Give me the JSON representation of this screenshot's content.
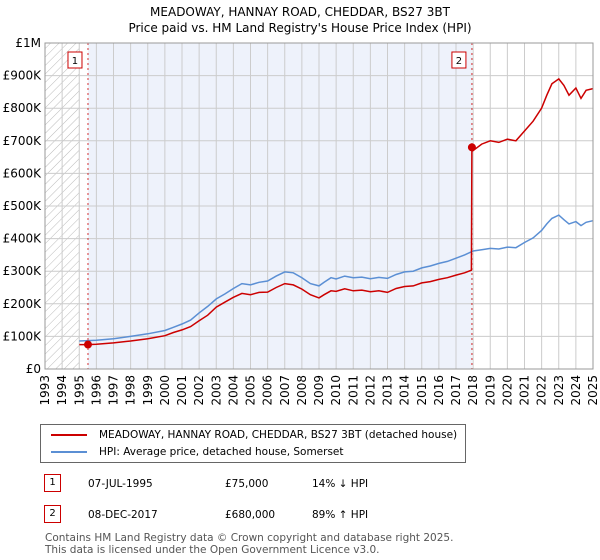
{
  "title": "MEADOWAY, HANNAY ROAD, CHEDDAR, BS27 3BT",
  "subtitle": "Price paid vs. HM Land Registry's House Price Index (HPI)",
  "legend": {
    "property_label": "MEADOWAY, HANNAY ROAD, CHEDDAR, BS27 3BT (detached house)",
    "hpi_label": "HPI: Average price, detached house, Somerset"
  },
  "transactions": [
    {
      "num": "1",
      "date": "07-JUL-1995",
      "price": "£75,000",
      "hpi": "14% ↓ HPI"
    },
    {
      "num": "2",
      "date": "08-DEC-2017",
      "price": "£680,000",
      "hpi": "89% ↑ HPI"
    }
  ],
  "footer": {
    "line1": "Contains HM Land Registry data © Crown copyright and database right 2025.",
    "line2": "This data is licensed under the Open Government Licence v3.0."
  },
  "colors": {
    "property": "#cc0000",
    "hpi": "#5b8fd4",
    "band": "#eef2fb",
    "grid": "#cccccc"
  },
  "chart_data": {
    "type": "line",
    "xlim": [
      1993,
      2025
    ],
    "ylim": [
      0,
      1000000
    ],
    "y_ticks": [
      {
        "value": 0,
        "label": "£0"
      },
      {
        "value": 100000,
        "label": "£100K"
      },
      {
        "value": 200000,
        "label": "£200K"
      },
      {
        "value": 300000,
        "label": "£300K"
      },
      {
        "value": 400000,
        "label": "£400K"
      },
      {
        "value": 500000,
        "label": "£500K"
      },
      {
        "value": 600000,
        "label": "£600K"
      },
      {
        "value": 700000,
        "label": "£700K"
      },
      {
        "value": 800000,
        "label": "£800K"
      },
      {
        "value": 900000,
        "label": "£900K"
      },
      {
        "value": 1000000,
        "label": "£1M"
      }
    ],
    "x_ticks": [
      "1993",
      "1994",
      "1995",
      "1996",
      "1997",
      "1998",
      "1999",
      "2000",
      "2001",
      "2002",
      "2003",
      "2004",
      "2005",
      "2006",
      "2007",
      "2008",
      "2009",
      "2010",
      "2011",
      "2012",
      "2013",
      "2014",
      "2015",
      "2016",
      "2017",
      "2018",
      "2019",
      "2020",
      "2021",
      "2022",
      "2023",
      "2024",
      "2025"
    ],
    "hatch_until": 1995.0,
    "shade_from": 1995.51,
    "shade_to": 2017.93,
    "markers": [
      {
        "label": "1",
        "x": 1995.51,
        "y": 75000
      },
      {
        "label": "2",
        "x": 2017.93,
        "y": 680000
      }
    ],
    "series": [
      {
        "name": "MEADOWAY, HANNAY ROAD, CHEDDAR, BS27 3BT (detached house)",
        "x": [
          1995.0,
          1995.51,
          1996.0,
          1997.0,
          1998.0,
          1999.0,
          2000.0,
          2000.5,
          2001.0,
          2001.5,
          2002.0,
          2002.5,
          2003.0,
          2003.5,
          2004.0,
          2004.5,
          2005.0,
          2005.5,
          2006.0,
          2006.5,
          2007.0,
          2007.5,
          2008.0,
          2008.5,
          2009.0,
          2009.3,
          2009.7,
          2010.0,
          2010.5,
          2011.0,
          2011.5,
          2012.0,
          2012.5,
          2013.0,
          2013.5,
          2014.0,
          2014.5,
          2015.0,
          2015.5,
          2016.0,
          2016.5,
          2017.0,
          2017.5,
          2017.9,
          2017.93,
          2018.0,
          2018.5,
          2019.0,
          2019.5,
          2020.0,
          2020.5,
          2021.0,
          2021.5,
          2022.0,
          2022.3,
          2022.6,
          2023.0,
          2023.3,
          2023.6,
          2024.0,
          2024.3,
          2024.6,
          2025.0
        ],
        "values": [
          75000,
          75000,
          76000,
          80000,
          86000,
          93000,
          102000,
          112000,
          120000,
          130000,
          148000,
          165000,
          190000,
          205000,
          220000,
          232000,
          228000,
          235000,
          236000,
          250000,
          262000,
          258000,
          245000,
          228000,
          218000,
          228000,
          240000,
          238000,
          246000,
          240000,
          242000,
          237000,
          240000,
          235000,
          247000,
          253000,
          255000,
          264000,
          268000,
          275000,
          280000,
          288000,
          295000,
          303000,
          680000,
          670000,
          690000,
          700000,
          695000,
          705000,
          700000,
          730000,
          760000,
          800000,
          840000,
          875000,
          890000,
          870000,
          840000,
          862000,
          830000,
          855000,
          860000
        ]
      },
      {
        "name": "HPI: Average price, detached house, Somerset",
        "x": [
          1995.0,
          1995.5,
          1996.0,
          1997.0,
          1998.0,
          1999.0,
          2000.0,
          2000.5,
          2001.0,
          2001.5,
          2002.0,
          2002.5,
          2003.0,
          2003.5,
          2004.0,
          2004.5,
          2005.0,
          2005.5,
          2006.0,
          2006.5,
          2007.0,
          2007.5,
          2008.0,
          2008.5,
          2009.0,
          2009.3,
          2009.7,
          2010.0,
          2010.5,
          2011.0,
          2011.5,
          2012.0,
          2012.5,
          2013.0,
          2013.5,
          2014.0,
          2014.5,
          2015.0,
          2015.5,
          2016.0,
          2016.5,
          2017.0,
          2017.5,
          2017.93,
          2018.0,
          2018.5,
          2019.0,
          2019.5,
          2020.0,
          2020.5,
          2021.0,
          2021.5,
          2022.0,
          2022.3,
          2022.6,
          2023.0,
          2023.3,
          2023.6,
          2024.0,
          2024.3,
          2024.6,
          2025.0
        ],
        "values": [
          86000,
          87000,
          88000,
          93000,
          100000,
          108000,
          118000,
          128000,
          138000,
          150000,
          172000,
          192000,
          215000,
          230000,
          247000,
          262000,
          258000,
          266000,
          270000,
          285000,
          298000,
          295000,
          280000,
          262000,
          255000,
          266000,
          280000,
          276000,
          285000,
          280000,
          282000,
          277000,
          281000,
          278000,
          290000,
          298000,
          300000,
          310000,
          316000,
          324000,
          330000,
          340000,
          350000,
          360000,
          362000,
          366000,
          370000,
          368000,
          374000,
          372000,
          388000,
          402000,
          425000,
          445000,
          462000,
          472000,
          458000,
          445000,
          452000,
          440000,
          450000,
          455000
        ]
      }
    ]
  }
}
